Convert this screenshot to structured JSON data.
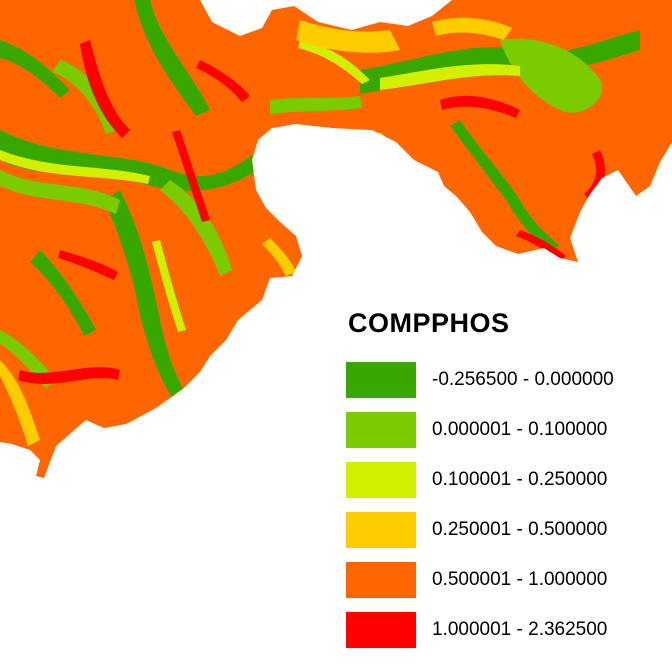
{
  "legend": {
    "title": "COMPPHOS",
    "classes": [
      {
        "label": "-0.256500 - 0.000000",
        "color": "#38a800"
      },
      {
        "label": "0.000001 - 0.100000",
        "color": "#7acc00"
      },
      {
        "label": "0.100001 - 0.250000",
        "color": "#d1f000"
      },
      {
        "label": "0.250001 - 0.500000",
        "color": "#ffcc00"
      },
      {
        "label": "0.500001 - 1.000000",
        "color": "#ff6600"
      },
      {
        "label": "1.000001 - 2.362500",
        "color": "#ff0000"
      }
    ]
  },
  "map": {
    "background": "#ffffff",
    "dominant_class_color": "#ff6600"
  }
}
